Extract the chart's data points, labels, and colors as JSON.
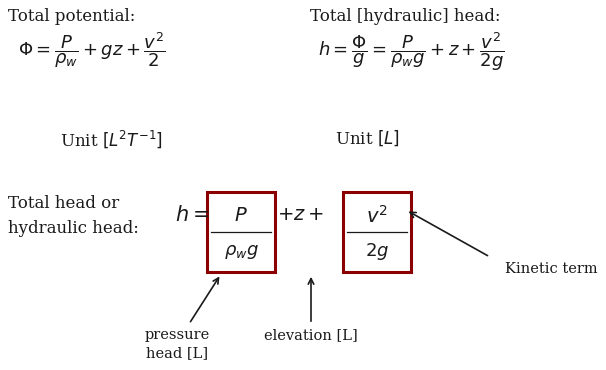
{
  "bg_color": "#ffffff",
  "text_color": "#1a1a1a",
  "box_color": "#8b0000",
  "fig_width": 6.06,
  "fig_height": 3.7,
  "top_left_title": "Total potential:",
  "top_left_unit": "Unit $[L^2T^{-1}]$",
  "top_right_title": "Total [hydraulic] head:",
  "top_right_unit": "Unit $[L]$",
  "bottom_left_label": "Total head or\nhydraulic head:",
  "label_pressure": "pressure\nhead [L]",
  "label_elevation": "elevation [L]",
  "label_kinetic": "Kinetic term",
  "font_size_title": 12,
  "font_size_formula": 13,
  "font_size_unit": 12,
  "font_size_bottom": 14,
  "font_size_label": 10.5
}
